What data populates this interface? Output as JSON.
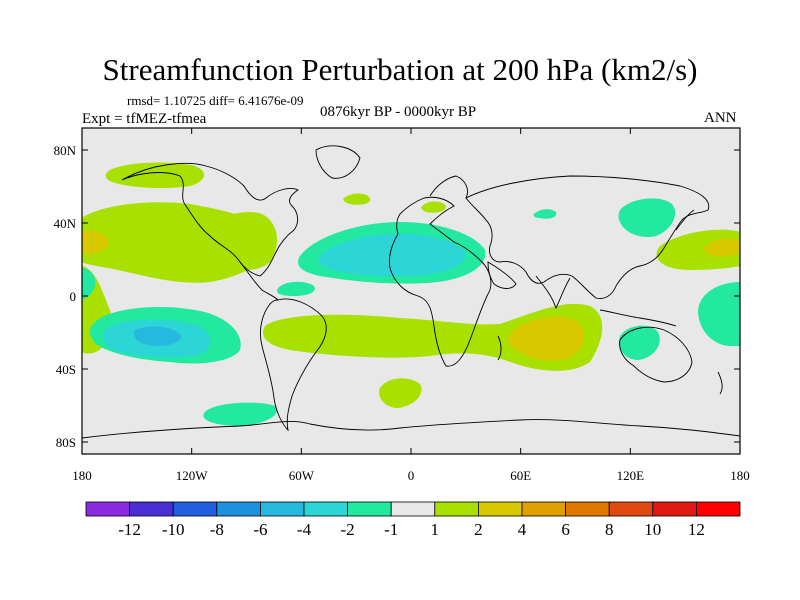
{
  "header": {
    "title": "Streamfunction Perturbation at 200 hPa (km2/s)",
    "stats": "rmsd= 1.10725 diff= 6.41676e-09",
    "experiment": "Expt = tfMEZ-tfmea",
    "period": "0876kyr BP - 0000kyr BP",
    "season": "ANN"
  },
  "axes": {
    "lat_ticks": [
      "80N",
      "40N",
      "0",
      "40S",
      "80S"
    ],
    "lon_ticks": [
      "180",
      "120W",
      "60W",
      "0",
      "60E",
      "120E",
      "180"
    ]
  },
  "colorbar": {
    "labels": [
      "-12",
      "-10",
      "-8",
      "-6",
      "-4",
      "-2",
      "-1",
      "1",
      "2",
      "4",
      "6",
      "8",
      "10",
      "12"
    ],
    "colors": [
      "#8a2be2",
      "#4b2fd6",
      "#1f5fe0",
      "#1e90e0",
      "#27b8e0",
      "#2cd6d6",
      "#22e8a0",
      "#e8e8e8",
      "#a8e000",
      "#d8c800",
      "#e0a000",
      "#e07800",
      "#e04a10",
      "#e01a10",
      "#ff0000"
    ]
  },
  "chart_data": {
    "type": "contour-map",
    "variable": "streamfunction perturbation",
    "level_hPa": 200,
    "units": "km2/s",
    "lon_range": [
      -180,
      180
    ],
    "lat_range": [
      -90,
      90
    ],
    "contour_levels": [
      -12,
      -10,
      -8,
      -6,
      -4,
      -2,
      -1,
      1,
      2,
      4,
      6,
      8,
      10,
      12
    ],
    "features": [
      {
        "sign": "positive",
        "max_level": 4,
        "lon": -150,
        "lat": 26
      },
      {
        "sign": "positive",
        "max_level": 2,
        "lon": -150,
        "lat": 65
      },
      {
        "sign": "positive",
        "max_level": 2,
        "lon": -85,
        "lat": 30
      },
      {
        "sign": "positive",
        "max_level": 4,
        "lon": 75,
        "lat": -20
      },
      {
        "sign": "positive",
        "max_level": 4,
        "lon": 150,
        "lat": 25
      },
      {
        "sign": "positive",
        "max_level": 2,
        "lon": -5,
        "lat": -45
      },
      {
        "sign": "positive",
        "max_level": 2,
        "lon": -70,
        "lat": -18
      },
      {
        "sign": "negative",
        "min_level": -4,
        "lon": -130,
        "lat": -18
      },
      {
        "sign": "negative",
        "min_level": -4,
        "lon": -10,
        "lat": 25
      },
      {
        "sign": "negative",
        "min_level": -2,
        "lon": -100,
        "lat": -62
      },
      {
        "sign": "negative",
        "min_level": -2,
        "lon": 110,
        "lat": 45
      },
      {
        "sign": "negative",
        "min_level": -2,
        "lon": 175,
        "lat": -5
      }
    ]
  }
}
